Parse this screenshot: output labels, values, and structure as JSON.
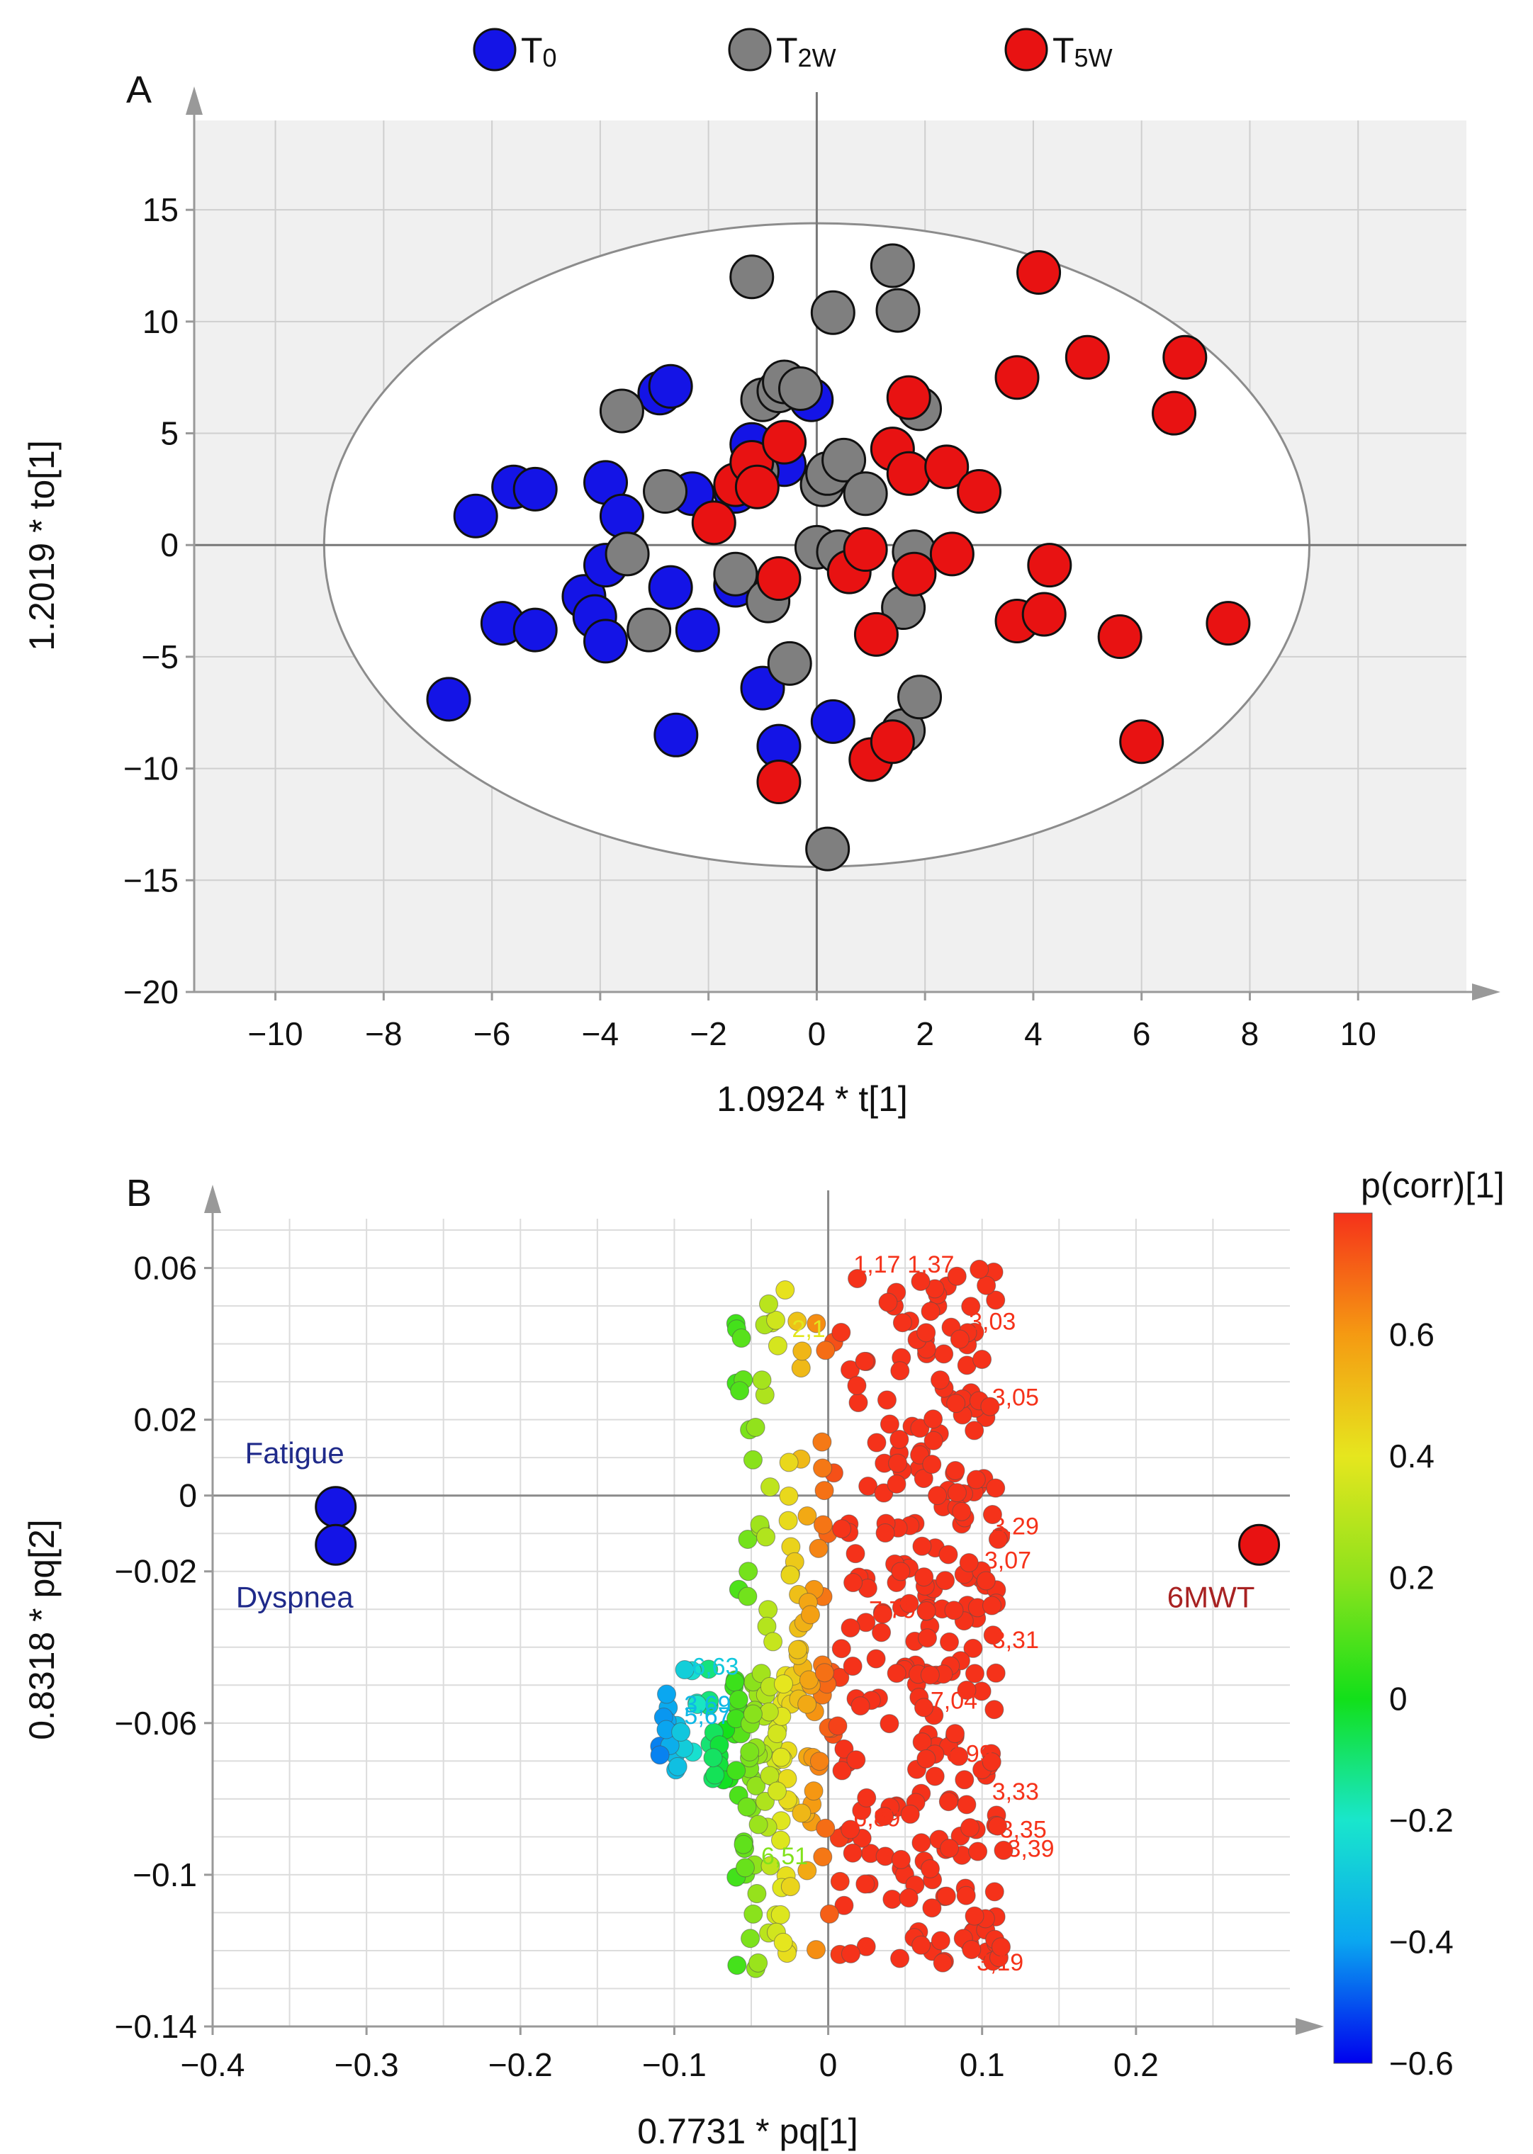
{
  "chart_data": [
    {
      "type": "scatter",
      "panel_label": "A",
      "xlabel": "1.0924 * t[1]",
      "ylabel": "1.2019 * to[1]",
      "xlim": [
        -11.5,
        12
      ],
      "ylim": [
        -20,
        19
      ],
      "xticks": [
        -10,
        -8,
        -6,
        -4,
        -2,
        0,
        2,
        4,
        6,
        8,
        10
      ],
      "yticks": [
        -20,
        -15,
        -10,
        -5,
        0,
        5,
        10,
        15
      ],
      "xtick_labels": [
        "−10",
        "−8",
        "−6",
        "−4",
        "−2",
        "0",
        "2",
        "4",
        "6",
        "8",
        "10"
      ],
      "ytick_labels": [
        "−20",
        "−15",
        "−10",
        "−5",
        "0",
        "5",
        "10",
        "15"
      ],
      "grid": true,
      "legend_position": "top",
      "ellipse": {
        "cx": 0,
        "cy": 0,
        "rx": 9.1,
        "ry": 14.4
      },
      "series": [
        {
          "name": "T",
          "subscript": "0",
          "color": "#1414e6",
          "points": [
            [
              -6.8,
              -6.9
            ],
            [
              -6.3,
              1.3
            ],
            [
              -5.8,
              -3.5
            ],
            [
              -5.6,
              2.6
            ],
            [
              -5.2,
              2.5
            ],
            [
              -5.2,
              -3.8
            ],
            [
              -4.3,
              -2.3
            ],
            [
              -4.1,
              -3.2
            ],
            [
              -3.9,
              2.8
            ],
            [
              -3.9,
              -0.9
            ],
            [
              -3.9,
              -4.3
            ],
            [
              -3.6,
              1.3
            ],
            [
              -2.9,
              6.8
            ],
            [
              -2.7,
              7.1
            ],
            [
              -2.7,
              -1.9
            ],
            [
              -2.6,
              -8.5
            ],
            [
              -2.3,
              2.3
            ],
            [
              -2.2,
              -3.8
            ],
            [
              -1.5,
              2.4
            ],
            [
              -1.2,
              4.5
            ],
            [
              -1.5,
              -1.8
            ],
            [
              -1.0,
              -6.4
            ],
            [
              -0.7,
              -9.0
            ],
            [
              -0.6,
              3.6
            ],
            [
              -0.1,
              6.5
            ],
            [
              0.3,
              -7.9
            ]
          ]
        },
        {
          "name": "T",
          "subscript": "2W",
          "color": "#7f7f7f",
          "points": [
            [
              -3.6,
              6.0
            ],
            [
              -3.5,
              -0.4
            ],
            [
              -3.1,
              -3.8
            ],
            [
              -2.8,
              2.4
            ],
            [
              -1.5,
              -1.3
            ],
            [
              -1.2,
              12.0
            ],
            [
              -1.0,
              6.5
            ],
            [
              -1.1,
              3.3
            ],
            [
              -0.9,
              -2.5
            ],
            [
              -0.7,
              6.9
            ],
            [
              -0.6,
              7.3
            ],
            [
              -0.5,
              -5.3
            ],
            [
              -0.3,
              7.0
            ],
            [
              0.1,
              2.7
            ],
            [
              0.0,
              -0.1
            ],
            [
              0.2,
              3.2
            ],
            [
              0.3,
              10.4
            ],
            [
              0.4,
              -0.3
            ],
            [
              0.5,
              3.8
            ],
            [
              0.9,
              2.3
            ],
            [
              1.4,
              12.5
            ],
            [
              1.5,
              10.5
            ],
            [
              1.6,
              -2.8
            ],
            [
              1.6,
              -8.3
            ],
            [
              1.9,
              6.1
            ],
            [
              1.9,
              -6.8
            ],
            [
              0.2,
              -13.6
            ],
            [
              1.8,
              -0.3
            ]
          ]
        },
        {
          "name": "T",
          "subscript": "5W",
          "color": "#e81212",
          "points": [
            [
              -1.9,
              1.0
            ],
            [
              -1.5,
              2.7
            ],
            [
              -1.2,
              3.7
            ],
            [
              -1.1,
              2.6
            ],
            [
              -0.6,
              4.6
            ],
            [
              -0.7,
              -1.5
            ],
            [
              -0.7,
              -10.6
            ],
            [
              0.6,
              -1.2
            ],
            [
              0.9,
              -0.2
            ],
            [
              1.1,
              -4.0
            ],
            [
              1.0,
              -9.6
            ],
            [
              1.4,
              4.3
            ],
            [
              1.4,
              -8.8
            ],
            [
              1.7,
              6.6
            ],
            [
              1.7,
              3.2
            ],
            [
              1.8,
              -1.3
            ],
            [
              2.4,
              3.5
            ],
            [
              2.5,
              -0.4
            ],
            [
              3.0,
              2.4
            ],
            [
              3.7,
              -3.4
            ],
            [
              3.7,
              7.5
            ],
            [
              4.1,
              12.2
            ],
            [
              4.2,
              -3.1
            ],
            [
              4.3,
              -0.9
            ],
            [
              5.0,
              8.4
            ],
            [
              5.6,
              -4.1
            ],
            [
              6.0,
              -8.8
            ],
            [
              6.6,
              5.9
            ],
            [
              6.8,
              8.4
            ],
            [
              7.6,
              -3.5
            ]
          ]
        }
      ]
    },
    {
      "type": "scatter",
      "panel_label": "B",
      "xlabel": "0.7731 * pq[1]",
      "ylabel": "0.8318 * pq[2]",
      "xlim": [
        -0.4,
        0.3
      ],
      "ylim": [
        -0.14,
        0.073
      ],
      "xticks": [
        -0.4,
        -0.3,
        -0.2,
        -0.1,
        0,
        0.1,
        0.2
      ],
      "yticks": [
        -0.14,
        -0.1,
        -0.06,
        -0.02,
        0,
        0.02,
        0.06
      ],
      "xtick_labels": [
        "−0.4",
        "−0.3",
        "−0.2",
        "−0.1",
        "0",
        "0.1",
        "0.2"
      ],
      "ytick_labels": [
        "−0.14",
        "−0.1",
        "−0.06",
        "−0.02",
        "0",
        "0.02",
        "0.06"
      ],
      "grid": true,
      "colorbar": {
        "title": "p(corr)[1]",
        "range": [
          -0.6,
          0.8
        ],
        "ticks": [
          -0.6,
          -0.4,
          -0.2,
          0,
          0.2,
          0.4,
          0.6
        ],
        "tick_labels": [
          "−0.6",
          "−0.4",
          "−0.2",
          "0",
          "0.2",
          "0.4",
          "0.6"
        ],
        "stops": [
          "#0000ee",
          "#0aa6f0",
          "#19e6cc",
          "#12e01a",
          "#8ee21c",
          "#e6e61e",
          "#f59a12",
          "#f5321a"
        ]
      },
      "variables": [
        {
          "label": "Fatigue",
          "x": -0.32,
          "y": -0.003,
          "color": "#1414e6",
          "label_color": "#1f2a8a",
          "label_pos": "above"
        },
        {
          "label": "Dyspnea",
          "x": -0.32,
          "y": -0.013,
          "color": "#1414e6",
          "label_color": "#1f2a8a",
          "label_pos": "below"
        },
        {
          "label": "6MWT",
          "x": 0.28,
          "y": -0.013,
          "color": "#e81212",
          "label_color": "#a82222",
          "label_pos": "below-left"
        }
      ],
      "point_labels": [
        {
          "text": "1,17",
          "x": 0.01,
          "y": 0.061
        },
        {
          "text": "1,37",
          "x": 0.045,
          "y": 0.061
        },
        {
          "text": "3,03",
          "x": 0.085,
          "y": 0.046
        },
        {
          "text": "3,05",
          "x": 0.1,
          "y": 0.026
        },
        {
          "text": "3,31",
          "x": 0.1,
          "y": -0.038
        },
        {
          "text": "3,33",
          "x": 0.1,
          "y": -0.078
        },
        {
          "text": "3,35",
          "x": 0.105,
          "y": -0.088
        },
        {
          "text": "3,39",
          "x": 0.11,
          "y": -0.093
        },
        {
          "text": "3,29",
          "x": 0.1,
          "y": -0.008
        },
        {
          "text": "3,07",
          "x": 0.095,
          "y": -0.017
        },
        {
          "text": "3,19",
          "x": 0.09,
          "y": -0.123
        },
        {
          "text": "6,99",
          "x": 0.07,
          "y": -0.068
        },
        {
          "text": "7,04",
          "x": 0.06,
          "y": -0.054
        },
        {
          "text": "7,79",
          "x": 0.02,
          "y": -0.03
        },
        {
          "text": "6,89",
          "x": 0.01,
          "y": -0.085
        },
        {
          "text": "6,51",
          "x": -0.05,
          "y": -0.095
        },
        {
          "text": "5,67",
          "x": -0.1,
          "y": -0.058
        },
        {
          "text": "6,63",
          "x": -0.095,
          "y": -0.045
        },
        {
          "text": "3,69",
          "x": -0.1,
          "y": -0.055
        },
        {
          "text": "2,1",
          "x": -0.03,
          "y": 0.044
        }
      ]
    }
  ]
}
